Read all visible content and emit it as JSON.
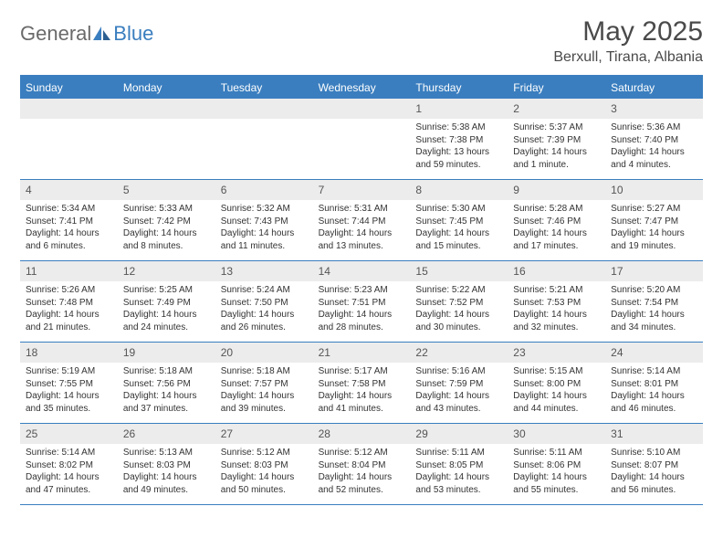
{
  "logo": {
    "text1": "General",
    "text2": "Blue"
  },
  "title": "May 2025",
  "location": "Berxull, Tirana, Albania",
  "colors": {
    "brand": "#3a7ebf",
    "logo_gray": "#6a6a6a",
    "text": "#333333",
    "daynum_bg": "#ececec",
    "bg": "#ffffff"
  },
  "dow": [
    "Sunday",
    "Monday",
    "Tuesday",
    "Wednesday",
    "Thursday",
    "Friday",
    "Saturday"
  ],
  "weeks": [
    [
      {
        "n": "",
        "sr": "",
        "ss": "",
        "dl": ""
      },
      {
        "n": "",
        "sr": "",
        "ss": "",
        "dl": ""
      },
      {
        "n": "",
        "sr": "",
        "ss": "",
        "dl": ""
      },
      {
        "n": "",
        "sr": "",
        "ss": "",
        "dl": ""
      },
      {
        "n": "1",
        "sr": "Sunrise: 5:38 AM",
        "ss": "Sunset: 7:38 PM",
        "dl": "Daylight: 13 hours and 59 minutes."
      },
      {
        "n": "2",
        "sr": "Sunrise: 5:37 AM",
        "ss": "Sunset: 7:39 PM",
        "dl": "Daylight: 14 hours and 1 minute."
      },
      {
        "n": "3",
        "sr": "Sunrise: 5:36 AM",
        "ss": "Sunset: 7:40 PM",
        "dl": "Daylight: 14 hours and 4 minutes."
      }
    ],
    [
      {
        "n": "4",
        "sr": "Sunrise: 5:34 AM",
        "ss": "Sunset: 7:41 PM",
        "dl": "Daylight: 14 hours and 6 minutes."
      },
      {
        "n": "5",
        "sr": "Sunrise: 5:33 AM",
        "ss": "Sunset: 7:42 PM",
        "dl": "Daylight: 14 hours and 8 minutes."
      },
      {
        "n": "6",
        "sr": "Sunrise: 5:32 AM",
        "ss": "Sunset: 7:43 PM",
        "dl": "Daylight: 14 hours and 11 minutes."
      },
      {
        "n": "7",
        "sr": "Sunrise: 5:31 AM",
        "ss": "Sunset: 7:44 PM",
        "dl": "Daylight: 14 hours and 13 minutes."
      },
      {
        "n": "8",
        "sr": "Sunrise: 5:30 AM",
        "ss": "Sunset: 7:45 PM",
        "dl": "Daylight: 14 hours and 15 minutes."
      },
      {
        "n": "9",
        "sr": "Sunrise: 5:28 AM",
        "ss": "Sunset: 7:46 PM",
        "dl": "Daylight: 14 hours and 17 minutes."
      },
      {
        "n": "10",
        "sr": "Sunrise: 5:27 AM",
        "ss": "Sunset: 7:47 PM",
        "dl": "Daylight: 14 hours and 19 minutes."
      }
    ],
    [
      {
        "n": "11",
        "sr": "Sunrise: 5:26 AM",
        "ss": "Sunset: 7:48 PM",
        "dl": "Daylight: 14 hours and 21 minutes."
      },
      {
        "n": "12",
        "sr": "Sunrise: 5:25 AM",
        "ss": "Sunset: 7:49 PM",
        "dl": "Daylight: 14 hours and 24 minutes."
      },
      {
        "n": "13",
        "sr": "Sunrise: 5:24 AM",
        "ss": "Sunset: 7:50 PM",
        "dl": "Daylight: 14 hours and 26 minutes."
      },
      {
        "n": "14",
        "sr": "Sunrise: 5:23 AM",
        "ss": "Sunset: 7:51 PM",
        "dl": "Daylight: 14 hours and 28 minutes."
      },
      {
        "n": "15",
        "sr": "Sunrise: 5:22 AM",
        "ss": "Sunset: 7:52 PM",
        "dl": "Daylight: 14 hours and 30 minutes."
      },
      {
        "n": "16",
        "sr": "Sunrise: 5:21 AM",
        "ss": "Sunset: 7:53 PM",
        "dl": "Daylight: 14 hours and 32 minutes."
      },
      {
        "n": "17",
        "sr": "Sunrise: 5:20 AM",
        "ss": "Sunset: 7:54 PM",
        "dl": "Daylight: 14 hours and 34 minutes."
      }
    ],
    [
      {
        "n": "18",
        "sr": "Sunrise: 5:19 AM",
        "ss": "Sunset: 7:55 PM",
        "dl": "Daylight: 14 hours and 35 minutes."
      },
      {
        "n": "19",
        "sr": "Sunrise: 5:18 AM",
        "ss": "Sunset: 7:56 PM",
        "dl": "Daylight: 14 hours and 37 minutes."
      },
      {
        "n": "20",
        "sr": "Sunrise: 5:18 AM",
        "ss": "Sunset: 7:57 PM",
        "dl": "Daylight: 14 hours and 39 minutes."
      },
      {
        "n": "21",
        "sr": "Sunrise: 5:17 AM",
        "ss": "Sunset: 7:58 PM",
        "dl": "Daylight: 14 hours and 41 minutes."
      },
      {
        "n": "22",
        "sr": "Sunrise: 5:16 AM",
        "ss": "Sunset: 7:59 PM",
        "dl": "Daylight: 14 hours and 43 minutes."
      },
      {
        "n": "23",
        "sr": "Sunrise: 5:15 AM",
        "ss": "Sunset: 8:00 PM",
        "dl": "Daylight: 14 hours and 44 minutes."
      },
      {
        "n": "24",
        "sr": "Sunrise: 5:14 AM",
        "ss": "Sunset: 8:01 PM",
        "dl": "Daylight: 14 hours and 46 minutes."
      }
    ],
    [
      {
        "n": "25",
        "sr": "Sunrise: 5:14 AM",
        "ss": "Sunset: 8:02 PM",
        "dl": "Daylight: 14 hours and 47 minutes."
      },
      {
        "n": "26",
        "sr": "Sunrise: 5:13 AM",
        "ss": "Sunset: 8:03 PM",
        "dl": "Daylight: 14 hours and 49 minutes."
      },
      {
        "n": "27",
        "sr": "Sunrise: 5:12 AM",
        "ss": "Sunset: 8:03 PM",
        "dl": "Daylight: 14 hours and 50 minutes."
      },
      {
        "n": "28",
        "sr": "Sunrise: 5:12 AM",
        "ss": "Sunset: 8:04 PM",
        "dl": "Daylight: 14 hours and 52 minutes."
      },
      {
        "n": "29",
        "sr": "Sunrise: 5:11 AM",
        "ss": "Sunset: 8:05 PM",
        "dl": "Daylight: 14 hours and 53 minutes."
      },
      {
        "n": "30",
        "sr": "Sunrise: 5:11 AM",
        "ss": "Sunset: 8:06 PM",
        "dl": "Daylight: 14 hours and 55 minutes."
      },
      {
        "n": "31",
        "sr": "Sunrise: 5:10 AM",
        "ss": "Sunset: 8:07 PM",
        "dl": "Daylight: 14 hours and 56 minutes."
      }
    ]
  ]
}
